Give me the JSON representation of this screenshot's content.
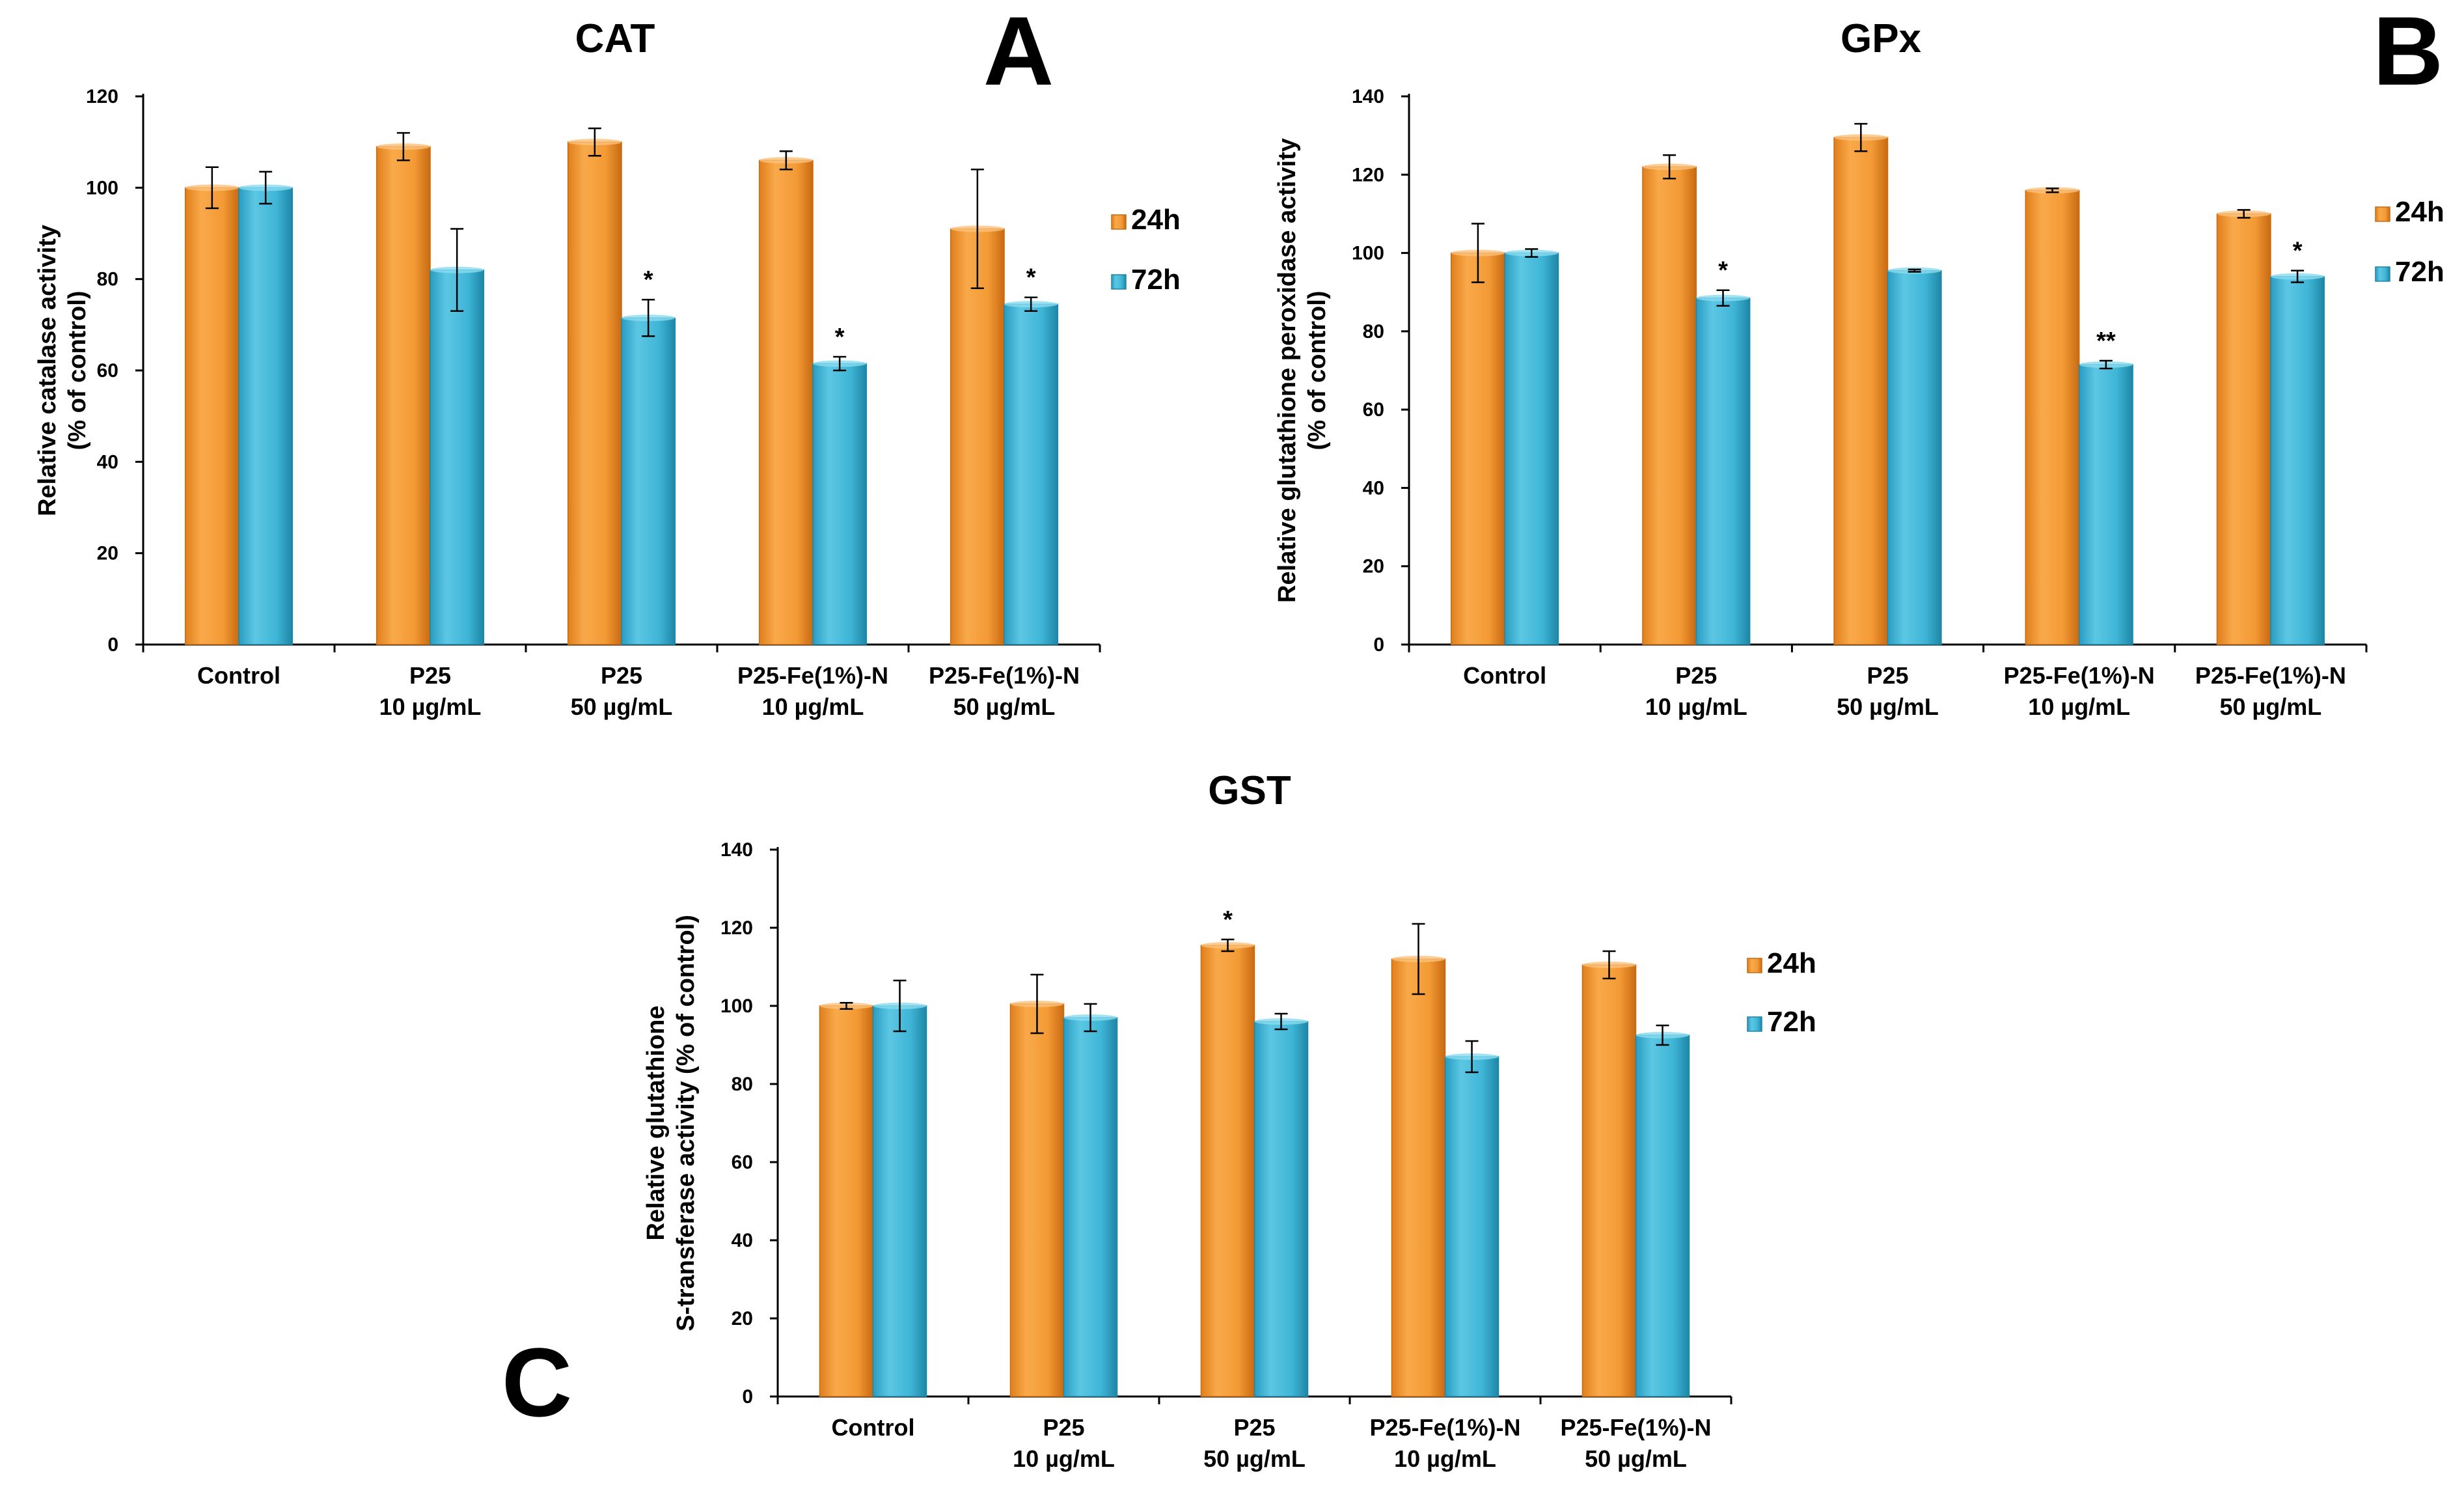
{
  "colors": {
    "series_24h": "#F39A35",
    "series_24h_dark": "#C96A12",
    "series_72h": "#3FB5D6",
    "series_72h_dark": "#1E86A6",
    "axis": "#000000"
  },
  "chart_data": [
    {
      "id": "A",
      "type": "bar",
      "title": "CAT",
      "panel_letter": "A",
      "ylabel_lines": [
        "Relative catalase activity",
        "(% of control)"
      ],
      "xlabel": "",
      "ylim": [
        0,
        120
      ],
      "yticks": [
        0,
        20,
        40,
        60,
        80,
        100,
        120
      ],
      "categories": [
        [
          "Control"
        ],
        [
          "P25",
          "10 µg/mL"
        ],
        [
          "P25",
          "50 µg/mL"
        ],
        [
          "P25-Fe(1%)-N",
          "10 µg/mL"
        ],
        [
          "P25-Fe(1%)-N",
          "50 µg/mL"
        ]
      ],
      "series": [
        {
          "name": "24h",
          "values": [
            100,
            109,
            110,
            106,
            91
          ],
          "errors": [
            4.5,
            3,
            3,
            2,
            13
          ],
          "marks": [
            "",
            "",
            "",
            "",
            ""
          ]
        },
        {
          "name": "72h",
          "values": [
            100,
            82,
            71.5,
            61.5,
            74.5
          ],
          "errors": [
            3.5,
            9,
            4,
            1.5,
            1.5
          ],
          "marks": [
            "",
            "",
            "*",
            "*",
            "*"
          ]
        }
      ],
      "legend": [
        "24h",
        "72h"
      ],
      "legend_position": "right"
    },
    {
      "id": "B",
      "type": "bar",
      "title": "GPx",
      "panel_letter": "B",
      "ylabel_lines": [
        "Relative glutathione peroxidase activity",
        "(% of control)"
      ],
      "xlabel": "",
      "ylim": [
        0,
        140
      ],
      "yticks": [
        0,
        20,
        40,
        60,
        80,
        100,
        120,
        140
      ],
      "categories": [
        [
          "Control"
        ],
        [
          "P25",
          "10 µg/mL"
        ],
        [
          "P25",
          "50 µg/mL"
        ],
        [
          "P25-Fe(1%)-N",
          "10 µg/mL"
        ],
        [
          "P25-Fe(1%)-N",
          "50 µg/mL"
        ]
      ],
      "series": [
        {
          "name": "24h",
          "values": [
            100,
            122,
            129.5,
            116,
            110
          ],
          "errors": [
            7.5,
            3,
            3.5,
            0.5,
            1
          ],
          "marks": [
            "",
            "",
            "",
            "",
            ""
          ]
        },
        {
          "name": "72h",
          "values": [
            100,
            88.5,
            95.5,
            71.5,
            94
          ],
          "errors": [
            1,
            2,
            0.3,
            1,
            1.5
          ],
          "marks": [
            "",
            "*",
            "",
            "**",
            "*"
          ]
        }
      ],
      "legend": [
        "24h",
        "72h"
      ],
      "legend_position": "right"
    },
    {
      "id": "C",
      "type": "bar",
      "title": "GST",
      "panel_letter": "C",
      "ylabel_lines": [
        "Relative glutathione",
        "S-transferase activity (% of control)"
      ],
      "xlabel": "",
      "ylim": [
        0,
        140
      ],
      "yticks": [
        0,
        20,
        40,
        60,
        80,
        100,
        120,
        140
      ],
      "categories": [
        [
          "Control"
        ],
        [
          "P25",
          "10 µg/mL"
        ],
        [
          "P25",
          "50 µg/mL"
        ],
        [
          "P25-Fe(1%)-N",
          "10 µg/mL"
        ],
        [
          "P25-Fe(1%)-N",
          "50 µg/mL"
        ]
      ],
      "series": [
        {
          "name": "24h",
          "values": [
            100,
            100.5,
            115.5,
            112,
            110.5
          ],
          "errors": [
            0.8,
            7.5,
            1.5,
            9,
            3.5
          ],
          "marks": [
            "",
            "",
            "*",
            "",
            ""
          ]
        },
        {
          "name": "72h",
          "values": [
            100,
            97,
            96,
            87,
            92.5
          ],
          "errors": [
            6.5,
            3.5,
            2,
            4,
            2.5
          ],
          "marks": [
            "",
            "",
            "",
            "",
            ""
          ]
        }
      ],
      "legend": [
        "24h",
        "72h"
      ],
      "legend_position": "right"
    }
  ]
}
